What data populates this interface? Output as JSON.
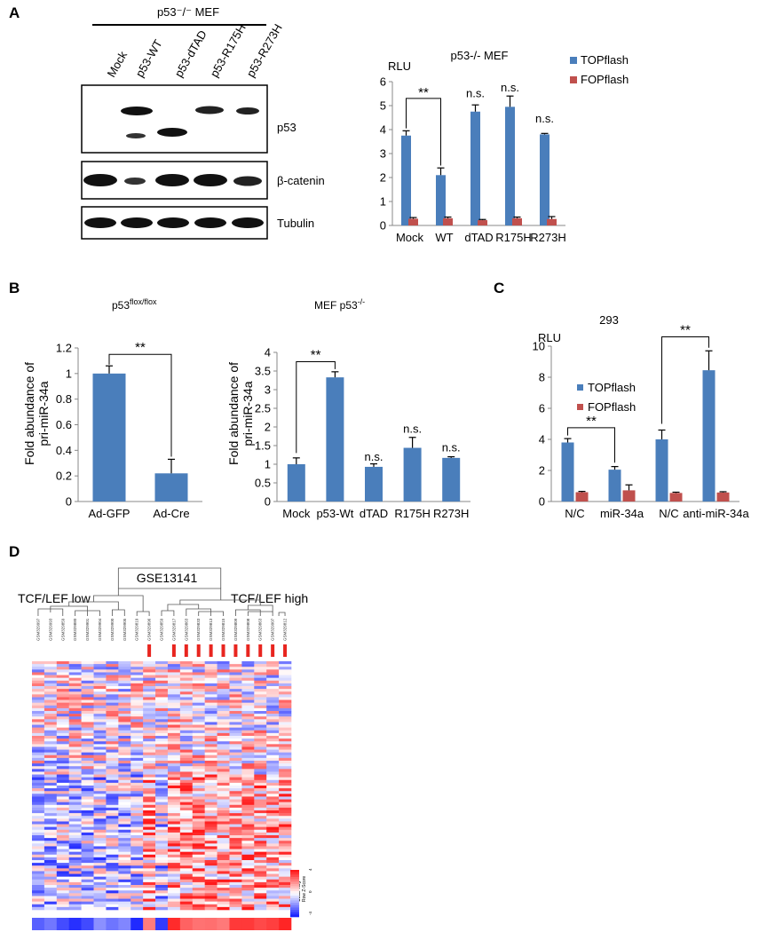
{
  "colors": {
    "top": "#4a7ebb",
    "fop": "#c0504d",
    "axis": "#888888"
  },
  "panelA": {
    "label": "A",
    "blot_header": "p53⁻/⁻ MEF",
    "lanes": [
      "Mock",
      "p53-WT",
      "p53-dTAD",
      "p53-R175H",
      "p53-R273H"
    ],
    "bands": [
      "p53",
      "β-catenin",
      "Tubulin"
    ]
  },
  "chart_data": [
    {
      "id": "A",
      "type": "bar",
      "title": "p53-/- MEF",
      "ylabel_top": "RLU",
      "categories": [
        "Mock",
        "WT",
        "dTAD",
        "R175H",
        "R273H"
      ],
      "series": [
        {
          "name": "TOPflash",
          "values": [
            3.75,
            2.1,
            4.75,
            4.95,
            3.8
          ],
          "errors": [
            0.2,
            0.3,
            0.28,
            0.45,
            0.04
          ]
        },
        {
          "name": "FOPflash",
          "values": [
            0.28,
            0.3,
            0.22,
            0.3,
            0.27
          ],
          "errors": [
            0.05,
            0.05,
            0.03,
            0.05,
            0.1
          ]
        }
      ],
      "ylim": [
        0,
        6
      ],
      "yticks": [
        "0",
        "1",
        "2",
        "3",
        "4",
        "5",
        "6"
      ],
      "annotations": [
        "**",
        "n.s.",
        "n.s.",
        "n.s."
      ]
    },
    {
      "id": "B1",
      "type": "bar",
      "title_main": "p53",
      "title_sup": "flox/flox",
      "ylabel": [
        "Fold abundance of",
        "pri-miR-34a"
      ],
      "categories": [
        "Ad-GFP",
        "Ad-Cre"
      ],
      "series": [
        {
          "name": "pri-miR-34a",
          "values": [
            1.0,
            0.22
          ],
          "errors": [
            0.06,
            0.11
          ]
        }
      ],
      "ylim": [
        0,
        1.2
      ],
      "yticks": [
        "0",
        "0.2",
        "0.4",
        "0.6",
        "0.8",
        "1",
        "1.2"
      ],
      "annotations": [
        "**"
      ]
    },
    {
      "id": "B2",
      "type": "bar",
      "title_main": "MEF p53",
      "title_sup": "-/-",
      "ylabel": [
        "Fold abundance of",
        "pri-miR-34a"
      ],
      "categories": [
        "Mock",
        "p53-Wt",
        "dTAD",
        "R175H",
        "R273H"
      ],
      "series": [
        {
          "name": "pri-miR-34a",
          "values": [
            1.0,
            3.33,
            0.93,
            1.44,
            1.17
          ],
          "errors": [
            0.17,
            0.15,
            0.08,
            0.28,
            0.03
          ]
        }
      ],
      "ylim": [
        0,
        4
      ],
      "yticks": [
        "0",
        "0.5",
        "1",
        "1.5",
        "2",
        "2.5",
        "3",
        "3.5",
        "4"
      ],
      "annotations": [
        "**",
        "n.s.",
        "n.s.",
        "n.s."
      ]
    },
    {
      "id": "C",
      "type": "bar",
      "title": "293",
      "ylabel_top": "RLU",
      "categories": [
        "N/C",
        "miR-34a",
        "N/C",
        "anti-miR-34a"
      ],
      "series": [
        {
          "name": "TOPflash",
          "values": [
            3.8,
            2.05,
            4.0,
            8.45
          ],
          "errors": [
            0.25,
            0.2,
            0.6,
            1.25
          ]
        },
        {
          "name": "FOPflash",
          "values": [
            0.6,
            0.72,
            0.55,
            0.58
          ],
          "errors": [
            0.05,
            0.35,
            0.05,
            0.05
          ]
        }
      ],
      "ylim": [
        0,
        10
      ],
      "yticks": [
        "0",
        "2",
        "4",
        "6",
        "8",
        "10"
      ],
      "annotations": [
        "**",
        "**"
      ]
    }
  ],
  "panelB": {
    "label": "B"
  },
  "panelC": {
    "label": "C"
  },
  "panelD": {
    "label": "D",
    "title": "GSE13141",
    "group_low": "TCF/LEF low",
    "group_high": "TCF/LEF high",
    "samples": [
      "GSM329997",
      "GSM329993",
      "GSM329859",
      "GSM329880",
      "GSM329901",
      "GSM329904",
      "GSM329900",
      "GSM329905",
      "GSM329819",
      "GSM329896",
      "GSM329859",
      "GSM329817",
      "GSM329863",
      "GSM329833",
      "GSM329813",
      "GSM329815",
      "GSM329809",
      "GSM329808",
      "GSM329863",
      "GSM329907",
      "GSM329812"
    ],
    "high_flags": [
      0,
      0,
      0,
      0,
      0,
      0,
      0,
      0,
      0,
      1,
      0,
      1,
      1,
      1,
      1,
      1,
      1,
      1,
      1,
      1,
      1
    ],
    "colorkey_title": "Color Key",
    "colorkey_label": "Row Z-Score",
    "colorkey_ticks": [
      "-4",
      "0",
      "4"
    ]
  }
}
